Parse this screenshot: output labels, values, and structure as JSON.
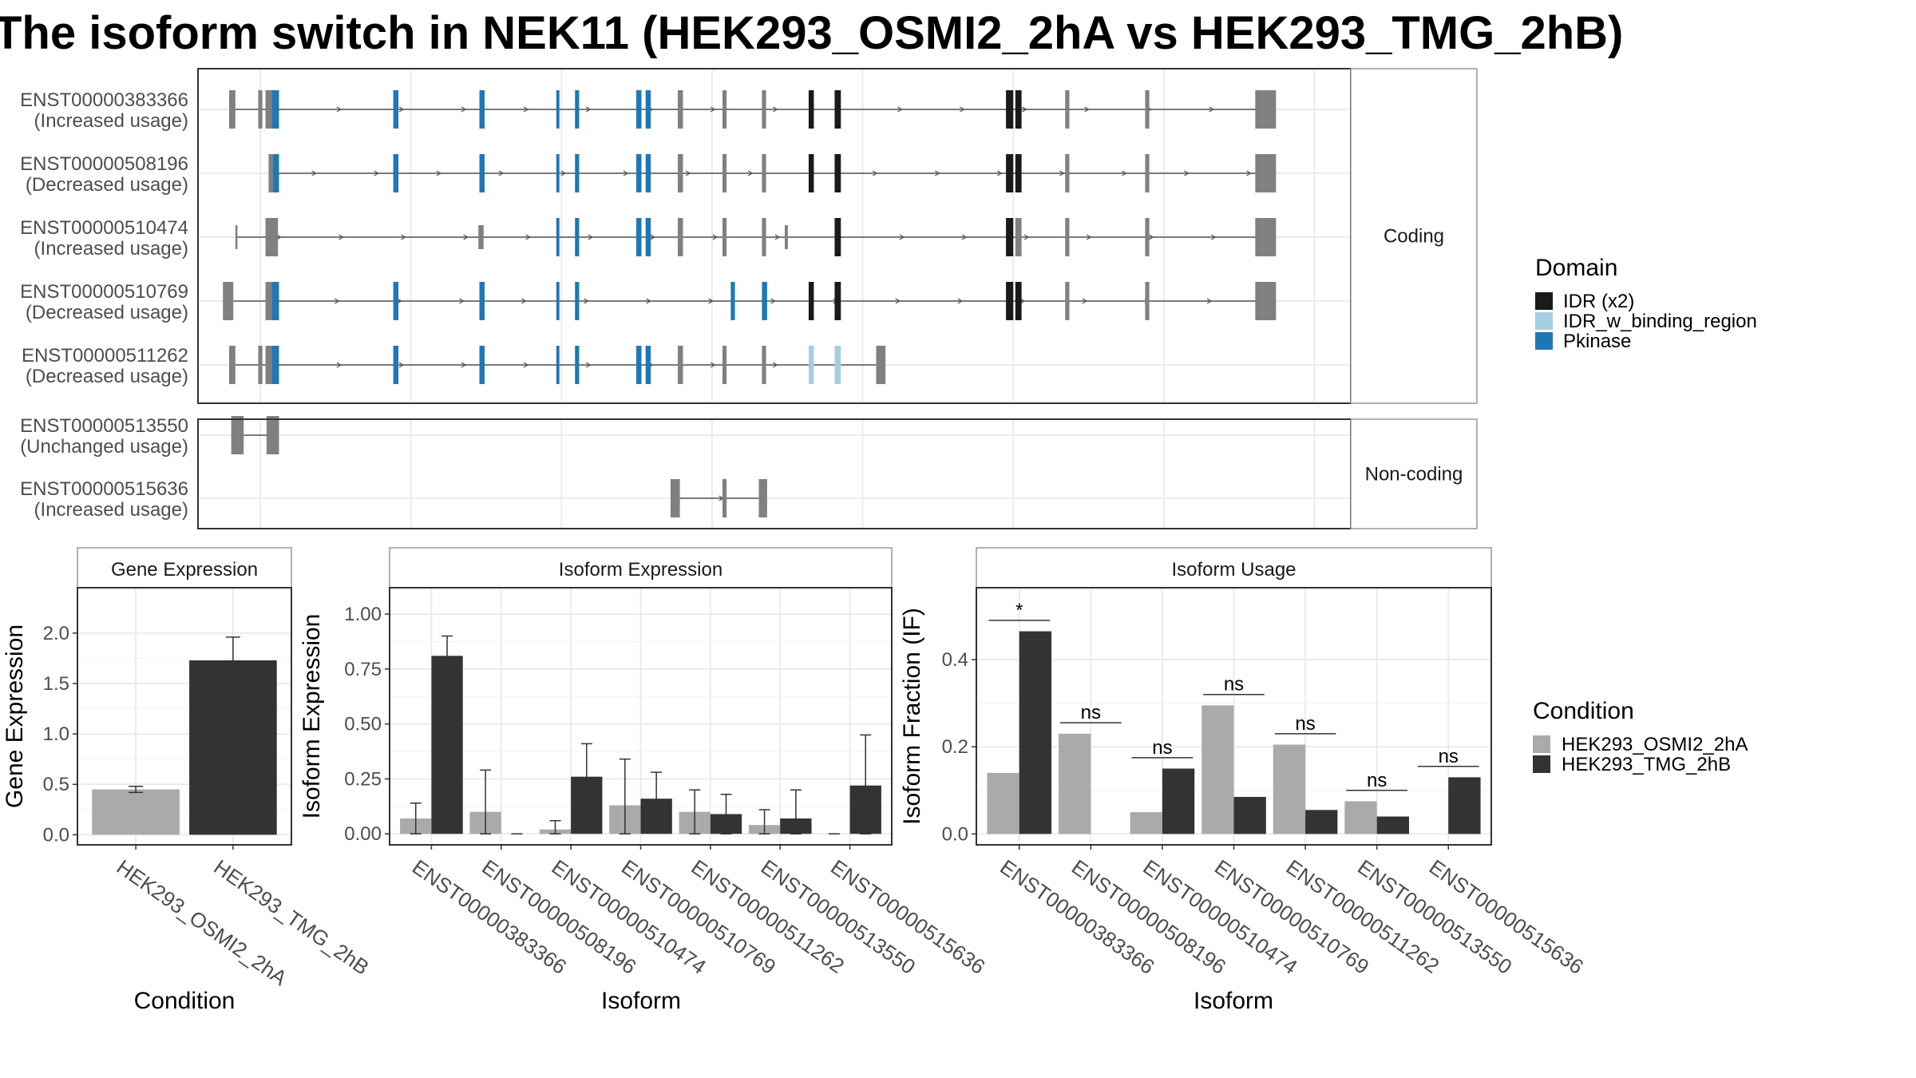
{
  "title": "The isoform switch in NEK11 (HEK293_OSMI2_2hA vs HEK293_TMG_2hB)",
  "colors": {
    "idr": "#1a1a1a",
    "idr_binding": "#a6cee3",
    "pkinase": "#1f78b4",
    "exon": "#808080",
    "cond1": "#aaaaaa",
    "cond2": "#333333",
    "panel_border": "#333333",
    "strip_border": "#999999",
    "grid_major": "#ebebeb"
  },
  "chart_data": [
    {
      "type": "gene-structure",
      "sections": [
        {
          "label": "Coding",
          "transcripts": [
            {
              "id": "ENST00000383366",
              "status": "(Increased usage)",
              "features": [
                [
                  30,
                  36,
                  "exon"
                ],
                [
                  58,
                  62,
                  "exon"
                ],
                [
                  65,
                  71,
                  "exon"
                ],
                [
                  71,
                  78,
                  "pkinase"
                ],
                [
                  188,
                  193,
                  "pkinase"
                ],
                [
                  271,
                  276,
                  "pkinase"
                ],
                [
                  345,
                  348,
                  "pkinase"
                ],
                [
                  363,
                  367,
                  "pkinase"
                ],
                [
                  422,
                  427,
                  "pkinase"
                ],
                [
                  431,
                  436,
                  "pkinase"
                ],
                [
                  462,
                  467,
                  "exon"
                ],
                [
                  505,
                  509,
                  "exon"
                ],
                [
                  543,
                  547,
                  "exon"
                ],
                [
                  588,
                  593,
                  "idr"
                ],
                [
                  613,
                  619,
                  "idr"
                ],
                [
                  778,
                  785,
                  "idr"
                ],
                [
                  787,
                  793,
                  "idr"
                ],
                [
                  835,
                  839,
                  "exon"
                ],
                [
                  912,
                  916,
                  "exon"
                ],
                [
                  1018,
                  1025,
                  "exon"
                ],
                [
                  1025,
                  1038,
                  "exon"
                ]
              ],
              "intron": [
                36,
                1025
              ],
              "thin": []
            },
            {
              "id": "ENST00000508196",
              "status": "(Decreased usage)",
              "features": [
                [
                  68,
                  72,
                  "exon"
                ],
                [
                  72,
                  78,
                  "pkinase"
                ],
                [
                  188,
                  193,
                  "pkinase"
                ],
                [
                  271,
                  276,
                  "pkinase"
                ],
                [
                  345,
                  348,
                  "pkinase"
                ],
                [
                  363,
                  367,
                  "pkinase"
                ],
                [
                  422,
                  427,
                  "pkinase"
                ],
                [
                  431,
                  436,
                  "pkinase"
                ],
                [
                  462,
                  467,
                  "exon"
                ],
                [
                  505,
                  509,
                  "exon"
                ],
                [
                  543,
                  547,
                  "exon"
                ],
                [
                  588,
                  593,
                  "idr"
                ],
                [
                  613,
                  619,
                  "idr"
                ],
                [
                  778,
                  785,
                  "idr"
                ],
                [
                  787,
                  793,
                  "idr"
                ],
                [
                  835,
                  839,
                  "exon"
                ],
                [
                  912,
                  916,
                  "exon"
                ],
                [
                  1018,
                  1025,
                  "exon"
                ],
                [
                  1025,
                  1038,
                  "exon"
                ]
              ],
              "intron": [
                72,
                1025
              ],
              "thin": []
            },
            {
              "id": "ENST00000510474",
              "status": "(Increased usage)",
              "features": [
                [
                  65,
                  77,
                  "exon"
                ],
                [
                  345,
                  348,
                  "pkinase"
                ],
                [
                  363,
                  367,
                  "pkinase"
                ],
                [
                  422,
                  427,
                  "pkinase"
                ],
                [
                  431,
                  436,
                  "pkinase"
                ],
                [
                  462,
                  467,
                  "exon"
                ],
                [
                  505,
                  509,
                  "exon"
                ],
                [
                  543,
                  547,
                  "exon"
                ],
                [
                  613,
                  619,
                  "idr"
                ],
                [
                  778,
                  785,
                  "idr"
                ],
                [
                  787,
                  793,
                  "exon"
                ],
                [
                  835,
                  839,
                  "exon"
                ],
                [
                  912,
                  916,
                  "exon"
                ],
                [
                  1018,
                  1025,
                  "exon"
                ],
                [
                  1025,
                  1038,
                  "exon"
                ]
              ],
              "intron": [
                38,
                1025
              ],
              "thin": [
                [
                  36,
                  38
                ],
                [
                  270,
                  275
                ],
                [
                  565,
                  568
                ]
              ]
            },
            {
              "id": "ENST00000510769",
              "status": "(Decreased usage)",
              "features": [
                [
                  24,
                  34,
                  "exon"
                ],
                [
                  65,
                  71,
                  "exon"
                ],
                [
                  71,
                  78,
                  "pkinase"
                ],
                [
                  188,
                  193,
                  "pkinase"
                ],
                [
                  271,
                  276,
                  "pkinase"
                ],
                [
                  345,
                  348,
                  "pkinase"
                ],
                [
                  363,
                  367,
                  "pkinase"
                ],
                [
                  513,
                  517,
                  "pkinase"
                ],
                [
                  543,
                  548,
                  "pkinase"
                ],
                [
                  588,
                  593,
                  "idr"
                ],
                [
                  613,
                  619,
                  "idr"
                ],
                [
                  778,
                  785,
                  "idr"
                ],
                [
                  787,
                  793,
                  "idr"
                ],
                [
                  835,
                  839,
                  "exon"
                ],
                [
                  912,
                  916,
                  "exon"
                ],
                [
                  1018,
                  1025,
                  "exon"
                ],
                [
                  1025,
                  1038,
                  "exon"
                ]
              ],
              "intron": [
                34,
                1025
              ],
              "thin": []
            },
            {
              "id": "ENST00000511262",
              "status": "(Decreased usage)",
              "features": [
                [
                  30,
                  36,
                  "exon"
                ],
                [
                  58,
                  62,
                  "exon"
                ],
                [
                  65,
                  71,
                  "exon"
                ],
                [
                  71,
                  78,
                  "pkinase"
                ],
                [
                  188,
                  193,
                  "pkinase"
                ],
                [
                  271,
                  276,
                  "pkinase"
                ],
                [
                  345,
                  348,
                  "pkinase"
                ],
                [
                  363,
                  367,
                  "pkinase"
                ],
                [
                  422,
                  427,
                  "pkinase"
                ],
                [
                  431,
                  436,
                  "pkinase"
                ],
                [
                  462,
                  467,
                  "exon"
                ],
                [
                  505,
                  509,
                  "exon"
                ],
                [
                  543,
                  547,
                  "exon"
                ],
                [
                  588,
                  593,
                  "idr_binding"
                ],
                [
                  613,
                  619,
                  "idr_binding"
                ],
                [
                  653,
                  662,
                  "exon"
                ]
              ],
              "intron": [
                36,
                653
              ],
              "thin": []
            }
          ]
        },
        {
          "label": "Non-coding",
          "transcripts": [
            {
              "id": "ENST00000513550",
              "status": "(Unchanged usage)",
              "features": [
                [
                  32,
                  44,
                  "exon"
                ],
                [
                  66,
                  78,
                  "exon"
                ]
              ],
              "intron": [
                44,
                66
              ],
              "thin": []
            },
            {
              "id": "ENST00000515636",
              "status": "(Increased usage)",
              "features": [
                [
                  455,
                  464,
                  "exon"
                ],
                [
                  505,
                  509,
                  "exon"
                ],
                [
                  540,
                  548,
                  "exon"
                ]
              ],
              "intron": [
                464,
                540
              ],
              "thin": []
            }
          ]
        }
      ],
      "legend": {
        "title": "Domain",
        "entries": [
          {
            "label": "IDR (x2)",
            "color": "#1a1a1a"
          },
          {
            "label": "IDR_w_binding_region",
            "color": "#a6cee3"
          },
          {
            "label": "Pkinase",
            "color": "#1f78b4"
          }
        ]
      }
    },
    {
      "type": "bar",
      "strip": "Gene Expression",
      "xlabel": "Condition",
      "ylabel": "Gene Expression",
      "ylim": [
        -0.1,
        2.45
      ],
      "yticks": [
        0.0,
        0.5,
        1.0,
        1.5,
        2.0
      ],
      "ytick_labels": [
        "0.0",
        "0.5",
        "1.0",
        "1.5",
        "2.0"
      ],
      "categories": [
        "HEK293_OSMI2_2hA",
        "HEK293_TMG_2hB"
      ],
      "values": [
        0.45,
        1.73
      ],
      "err_low": [
        0.42,
        1.51
      ],
      "err_high": [
        0.48,
        1.96
      ]
    },
    {
      "type": "bar",
      "strip": "Isoform Expression",
      "xlabel": "Isoform",
      "ylabel": "Isoform Expression",
      "ylim": [
        -0.05,
        1.12
      ],
      "yticks": [
        0.0,
        0.25,
        0.5,
        0.75,
        1.0
      ],
      "ytick_labels": [
        "0.00",
        "0.25",
        "0.50",
        "0.75",
        "1.00"
      ],
      "categories": [
        "ENST00000383366",
        "ENST00000508196",
        "ENST00000510474",
        "ENST00000510769",
        "ENST00000511262",
        "ENST00000513550",
        "ENST00000515636"
      ],
      "series": [
        {
          "name": "HEK293_OSMI2_2hA",
          "values": [
            0.07,
            0.1,
            0.02,
            0.13,
            0.1,
            0.04,
            0.0
          ],
          "err_low": [
            0.0,
            0.0,
            0.0,
            0.0,
            0.0,
            0.0,
            0.0
          ],
          "err_high": [
            0.14,
            0.29,
            0.06,
            0.34,
            0.2,
            0.11,
            0.0
          ]
        },
        {
          "name": "HEK293_TMG_2hB",
          "values": [
            0.81,
            0.0,
            0.26,
            0.16,
            0.09,
            0.07,
            0.22
          ],
          "err_low": [
            0.72,
            0.0,
            0.12,
            0.04,
            0.0,
            0.0,
            0.0
          ],
          "err_high": [
            0.9,
            0.0,
            0.41,
            0.28,
            0.18,
            0.2,
            0.45
          ]
        }
      ]
    },
    {
      "type": "bar",
      "strip": "Isoform Usage",
      "xlabel": "Isoform",
      "ylabel": "Isoform Fraction (IF)",
      "ylim": [
        -0.025,
        0.565
      ],
      "yticks": [
        0.0,
        0.2,
        0.4
      ],
      "ytick_labels": [
        "0.0",
        "0.2",
        "0.4"
      ],
      "categories": [
        "ENST00000383366",
        "ENST00000508196",
        "ENST00000510474",
        "ENST00000510769",
        "ENST00000511262",
        "ENST00000513550",
        "ENST00000515636"
      ],
      "series": [
        {
          "name": "HEK293_OSMI2_2hA",
          "values": [
            0.14,
            0.23,
            0.05,
            0.295,
            0.205,
            0.075,
            0.0
          ]
        },
        {
          "name": "HEK293_TMG_2hB",
          "values": [
            0.465,
            0.0,
            0.15,
            0.085,
            0.055,
            0.04,
            0.13
          ]
        }
      ],
      "annotations": {
        "labels": [
          "*",
          "ns",
          "ns",
          "ns",
          "ns",
          "ns",
          "ns"
        ],
        "levels": [
          0.49,
          0.255,
          0.175,
          0.32,
          0.23,
          0.1,
          0.155
        ]
      },
      "legend": {
        "title": "Condition",
        "entries": [
          {
            "label": "HEK293_OSMI2_2hA",
            "color": "#aaaaaa"
          },
          {
            "label": "HEK293_TMG_2hB",
            "color": "#333333"
          }
        ]
      }
    }
  ]
}
